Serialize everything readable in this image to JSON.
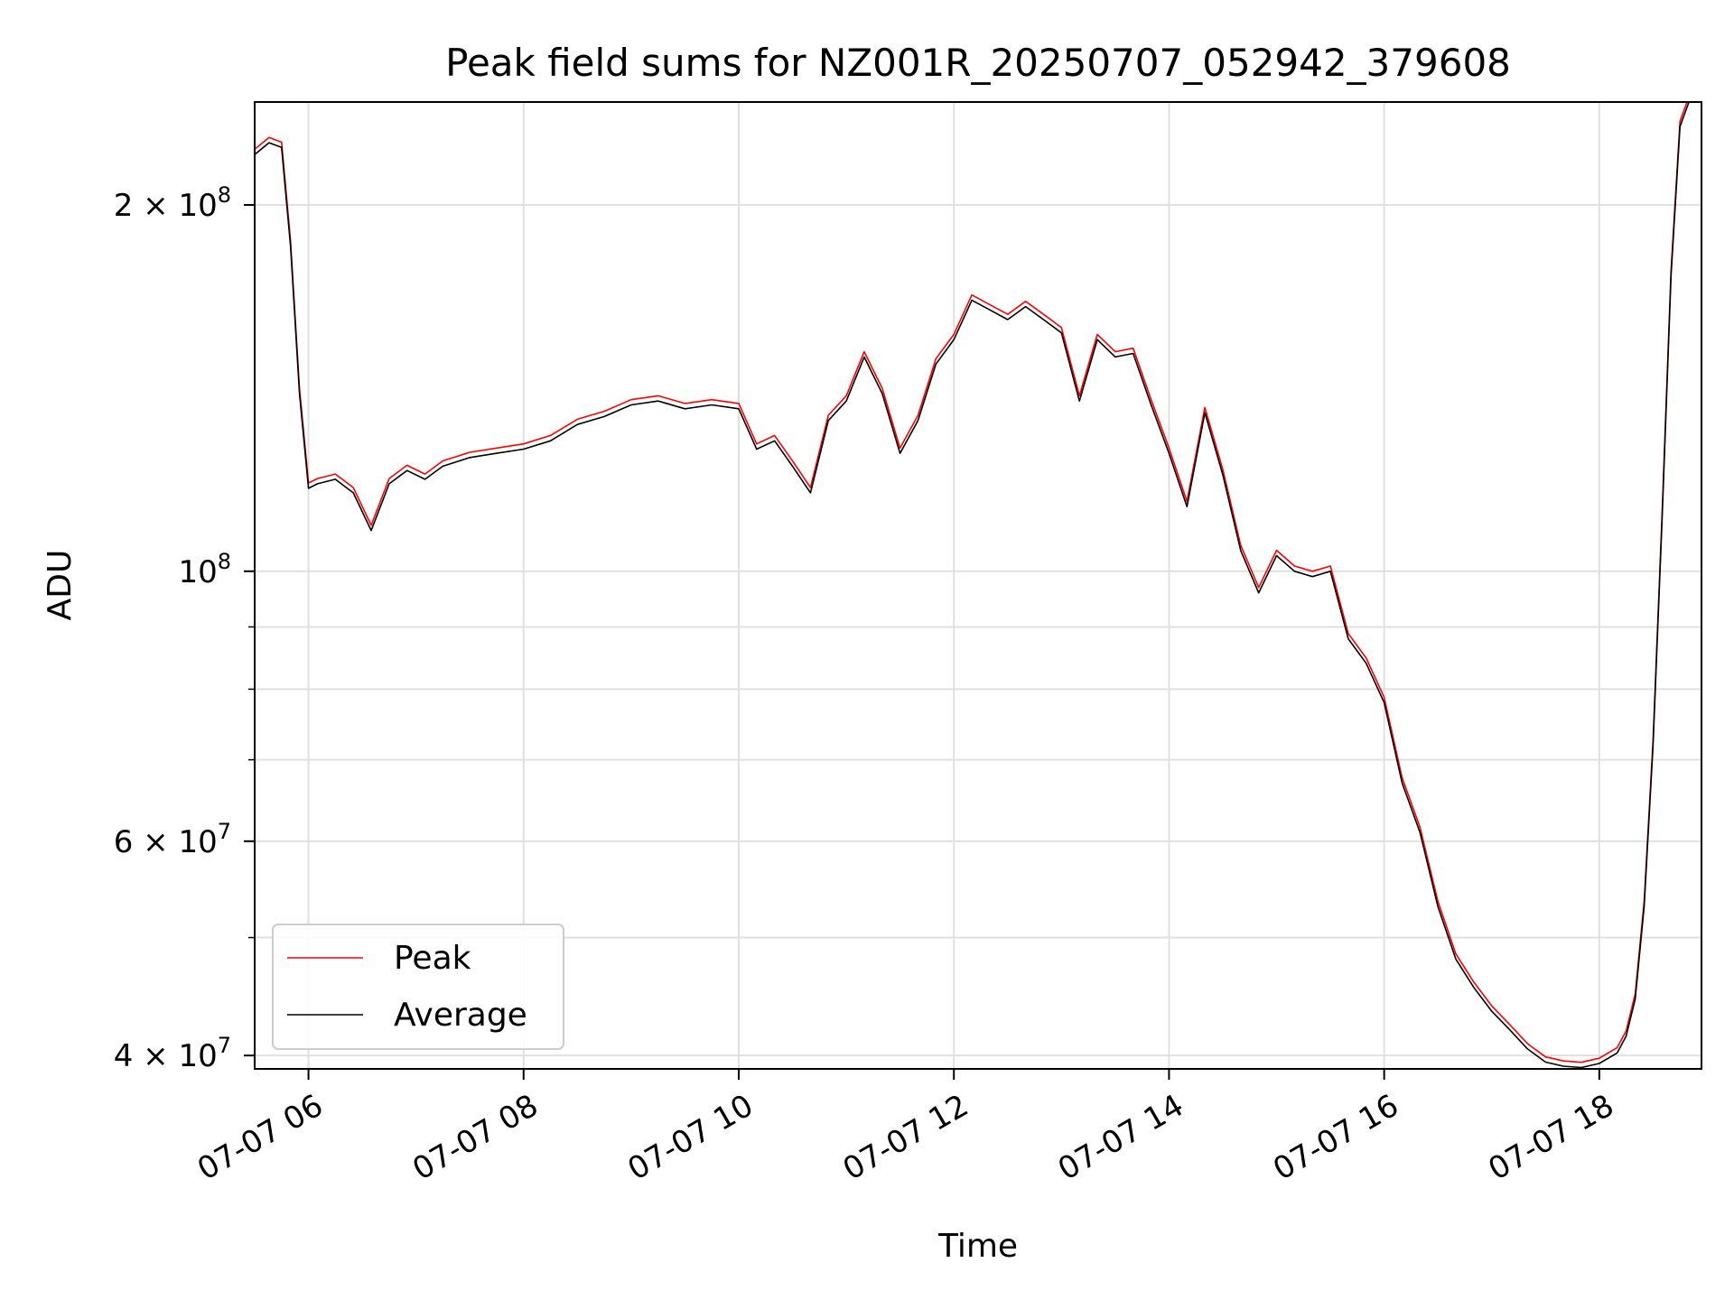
{
  "chart_data": {
    "type": "line",
    "title": "Peak field sums for NZ001R_20250707_052942_379608",
    "xlabel": "Time",
    "ylabel": "ADU",
    "y_scale": "log",
    "ylim": [
      39000000,
      243000000
    ],
    "xlim": [
      "2025-07-07 05:30",
      "2025-07-07 18:57"
    ],
    "grid": true,
    "legend_position": "lower-left",
    "x_ticks": [
      {
        "t": "2025-07-07 06:00",
        "label": "07-07 06"
      },
      {
        "t": "2025-07-07 08:00",
        "label": "07-07 08"
      },
      {
        "t": "2025-07-07 10:00",
        "label": "07-07 10"
      },
      {
        "t": "2025-07-07 12:00",
        "label": "07-07 12"
      },
      {
        "t": "2025-07-07 14:00",
        "label": "07-07 14"
      },
      {
        "t": "2025-07-07 16:00",
        "label": "07-07 16"
      },
      {
        "t": "2025-07-07 18:00",
        "label": "07-07 18"
      }
    ],
    "y_ticks": [
      {
        "value": 40000000,
        "base": "4 × 10",
        "exp": "7"
      },
      {
        "value": 60000000,
        "base": "6 × 10",
        "exp": "7"
      },
      {
        "value": 100000000,
        "base": "10",
        "exp": "8"
      },
      {
        "value": 200000000,
        "base": "2 × 10",
        "exp": "8"
      }
    ],
    "y_minor_ticks": [
      50000000,
      70000000,
      80000000,
      90000000
    ],
    "series": [
      {
        "name": "Peak",
        "color": "#ff0000",
        "offset_ratio": 1.01
      },
      {
        "name": "Average",
        "color": "#000000",
        "offset_ratio": 1.0
      }
    ],
    "x": [
      "2025-07-07 05:30",
      "2025-07-07 05:38",
      "2025-07-07 05:45",
      "2025-07-07 05:50",
      "2025-07-07 05:55",
      "2025-07-07 06:00",
      "2025-07-07 06:05",
      "2025-07-07 06:15",
      "2025-07-07 06:25",
      "2025-07-07 06:35",
      "2025-07-07 06:45",
      "2025-07-07 06:55",
      "2025-07-07 07:05",
      "2025-07-07 07:15",
      "2025-07-07 07:30",
      "2025-07-07 07:45",
      "2025-07-07 08:00",
      "2025-07-07 08:15",
      "2025-07-07 08:30",
      "2025-07-07 08:45",
      "2025-07-07 09:00",
      "2025-07-07 09:15",
      "2025-07-07 09:30",
      "2025-07-07 09:45",
      "2025-07-07 10:00",
      "2025-07-07 10:10",
      "2025-07-07 10:20",
      "2025-07-07 10:30",
      "2025-07-07 10:40",
      "2025-07-07 10:50",
      "2025-07-07 11:00",
      "2025-07-07 11:10",
      "2025-07-07 11:20",
      "2025-07-07 11:30",
      "2025-07-07 11:40",
      "2025-07-07 11:50",
      "2025-07-07 12:00",
      "2025-07-07 12:10",
      "2025-07-07 12:20",
      "2025-07-07 12:30",
      "2025-07-07 12:40",
      "2025-07-07 12:50",
      "2025-07-07 13:00",
      "2025-07-07 13:10",
      "2025-07-07 13:20",
      "2025-07-07 13:30",
      "2025-07-07 13:40",
      "2025-07-07 13:50",
      "2025-07-07 14:00",
      "2025-07-07 14:10",
      "2025-07-07 14:20",
      "2025-07-07 14:30",
      "2025-07-07 14:40",
      "2025-07-07 14:50",
      "2025-07-07 15:00",
      "2025-07-07 15:10",
      "2025-07-07 15:20",
      "2025-07-07 15:30",
      "2025-07-07 15:40",
      "2025-07-07 15:50",
      "2025-07-07 16:00",
      "2025-07-07 16:10",
      "2025-07-07 16:20",
      "2025-07-07 16:30",
      "2025-07-07 16:40",
      "2025-07-07 16:50",
      "2025-07-07 17:00",
      "2025-07-07 17:10",
      "2025-07-07 17:20",
      "2025-07-07 17:30",
      "2025-07-07 17:40",
      "2025-07-07 17:50",
      "2025-07-07 18:00",
      "2025-07-07 18:10",
      "2025-07-07 18:15",
      "2025-07-07 18:20",
      "2025-07-07 18:25",
      "2025-07-07 18:30",
      "2025-07-07 18:35",
      "2025-07-07 18:40",
      "2025-07-07 18:45",
      "2025-07-07 18:50",
      "2025-07-07 18:57"
    ],
    "values": [
      220000000,
      225000000,
      223000000,
      185000000,
      140000000,
      117000000,
      118000000,
      119000000,
      116000000,
      108000000,
      118000000,
      121000000,
      119000000,
      122000000,
      124000000,
      125000000,
      126000000,
      128000000,
      132000000,
      134000000,
      137000000,
      138000000,
      136000000,
      137000000,
      136000000,
      126000000,
      128000000,
      122000000,
      116000000,
      133000000,
      138000000,
      150000000,
      140000000,
      125000000,
      133000000,
      148000000,
      155000000,
      167000000,
      164000000,
      161000000,
      165000000,
      161000000,
      157000000,
      138000000,
      155000000,
      150000000,
      151000000,
      137000000,
      125000000,
      113000000,
      135000000,
      120000000,
      104000000,
      96000000,
      103000000,
      100000000,
      99000000,
      100000000,
      88000000,
      84000000,
      78000000,
      67000000,
      61000000,
      53000000,
      48000000,
      45500000,
      43500000,
      42000000,
      40500000,
      39500000,
      39200000,
      39100000,
      39400000,
      40200000,
      41500000,
      44500000,
      53000000,
      72000000,
      110000000,
      175000000,
      232000000,
      243000000,
      243000000
    ]
  }
}
